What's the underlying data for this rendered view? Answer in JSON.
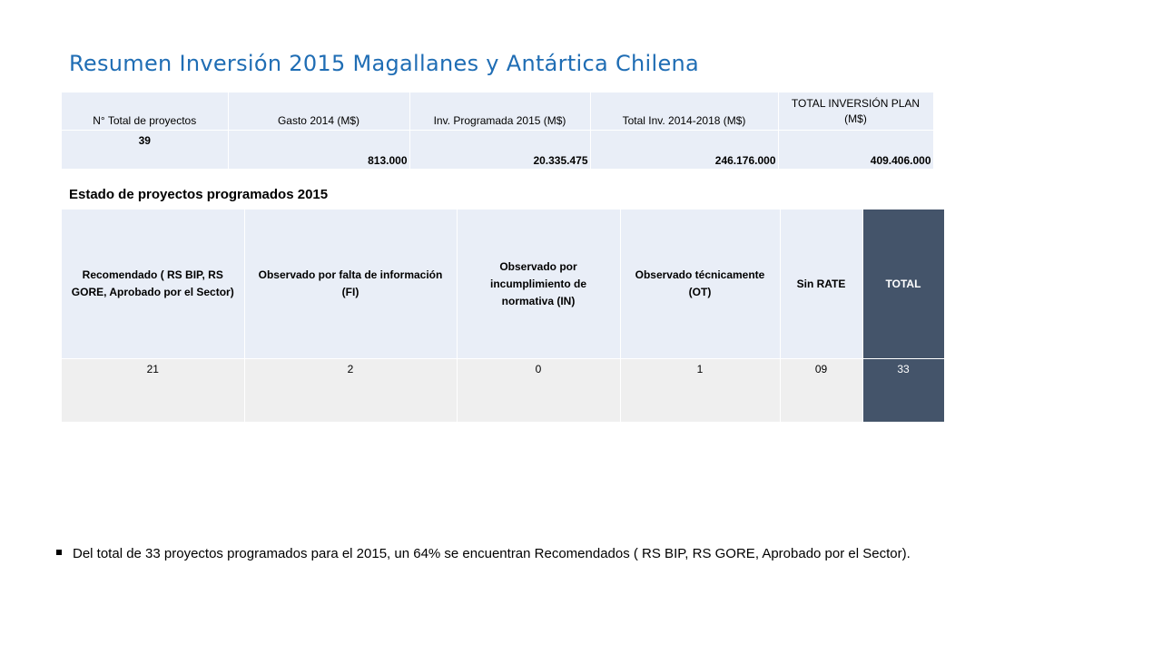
{
  "title": "Resumen Inversión 2015 Magallanes y Antártica Chilena",
  "summary_table": {
    "headers": [
      "N° Total de proyectos",
      "Gasto 2014 (M$)",
      "Inv. Programada 2015 (M$)",
      "Total Inv. 2014-2018 (M$)",
      "TOTAL INVERSIÓN PLAN (M$)"
    ],
    "values": [
      "39",
      "813.000",
      "20.335.475",
      "246.176.000",
      "409.406.000"
    ]
  },
  "status_section": {
    "title": "Estado de proyectos programados 2015",
    "headers": [
      "Recomendado ( RS BIP, RS GORE, Aprobado por el Sector)",
      "Observado por falta de información (FI)",
      "Observado por incumplimiento de normativa (IN)",
      "Observado técnicamente (OT)",
      "Sin RATE",
      "TOTAL"
    ],
    "values": [
      "21",
      "2",
      "0",
      "1",
      "09",
      "33"
    ]
  },
  "bullet_text": "Del total de 33 proyectos programados para el 2015,  un  64% se encuentran Recomendados ( RS BIP, RS GORE, Aprobado por el Sector).",
  "colors": {
    "title": "#1f6db4",
    "header_bg": "#e9eef7",
    "value_bg": "#efefef",
    "total_bg": "#44546a"
  }
}
